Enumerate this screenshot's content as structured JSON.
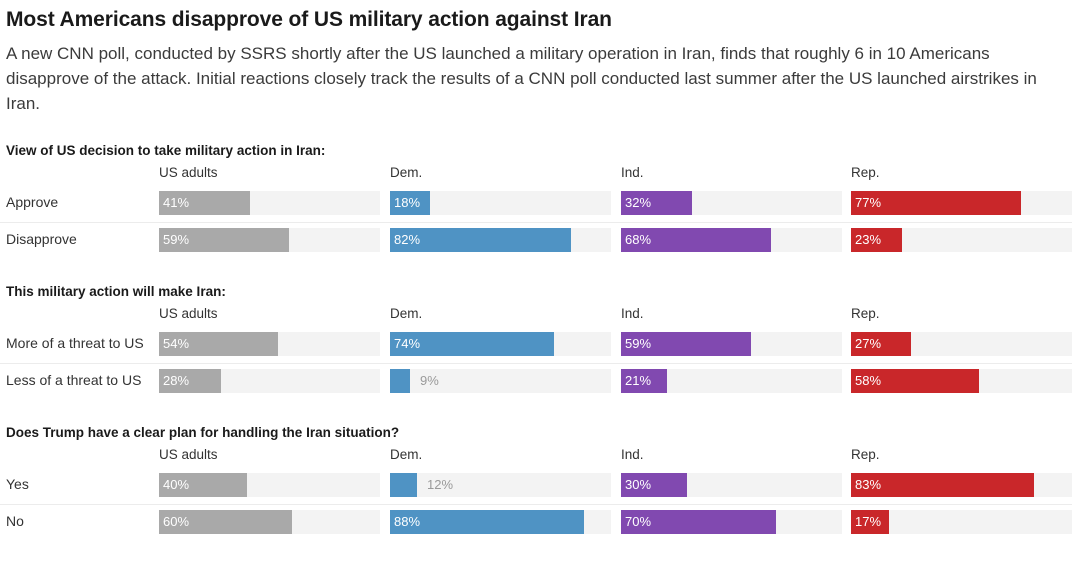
{
  "headline": "Most Americans disapprove of US military action against Iran",
  "dek": "A new CNN poll, conducted by SSRS shortly after the US launched a military operation in Iran, finds that roughly 6 in 10 Americans disapprove of the attack. Initial reactions closely track the results of a CNN poll conducted last summer after the US launched airstrikes in Iran.",
  "colors": {
    "US adults": "#a9a9a9",
    "Dem.": "#4f93c4",
    "Ind.": "#8149b0",
    "Rep.": "#c9272a"
  },
  "chart_data": {
    "type": "bar",
    "groups": [
      "US adults",
      "Dem.",
      "Ind.",
      "Rep."
    ],
    "xlim": [
      0,
      100
    ],
    "questions": [
      {
        "title": "View of US decision to take military action in Iran:",
        "rows": [
          {
            "label": "Approve",
            "values": [
              41,
              18,
              32,
              77
            ],
            "display": [
              "41%",
              "18%",
              "32%",
              "77%"
            ]
          },
          {
            "label": "Disapprove",
            "values": [
              59,
              82,
              68,
              23
            ],
            "display": [
              "59%",
              "82%",
              "68%",
              "23%"
            ]
          }
        ]
      },
      {
        "title": "This military action will make Iran:",
        "rows": [
          {
            "label": "More of a threat to US",
            "values": [
              54,
              74,
              59,
              27
            ],
            "display": [
              "54%",
              "74%",
              "59%",
              "27%"
            ]
          },
          {
            "label": "Less of a threat to US",
            "values": [
              28,
              9,
              21,
              58
            ],
            "display": [
              "28%",
              "9%",
              "21%",
              "58%"
            ]
          }
        ]
      },
      {
        "title": "Does Trump have a clear plan for handling the Iran situation?",
        "rows": [
          {
            "label": "Yes",
            "values": [
              40,
              12,
              30,
              83
            ],
            "display": [
              "40%",
              "12%",
              "30%",
              "83%"
            ]
          },
          {
            "label": "No",
            "values": [
              60,
              88,
              70,
              17
            ],
            "display": [
              "60%",
              "88%",
              "70%",
              "17%"
            ]
          }
        ]
      }
    ]
  }
}
